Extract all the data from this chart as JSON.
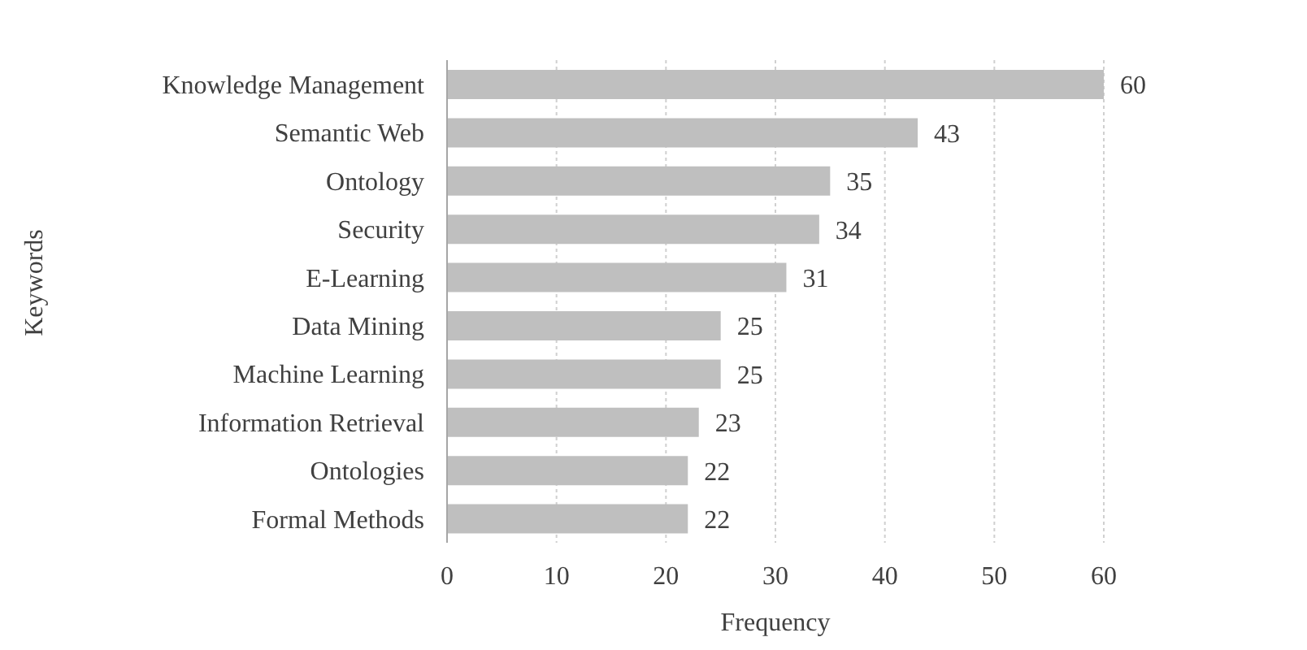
{
  "chart_data": {
    "type": "bar",
    "orientation": "horizontal",
    "xlabel": "Frequency",
    "ylabel": "Keywords",
    "categories": [
      "Knowledge Management",
      "Semantic Web",
      "Ontology",
      "Security",
      "E-Learning",
      "Data Mining",
      "Machine Learning",
      "Information Retrieval",
      "Ontologies",
      "Formal Methods"
    ],
    "values": [
      60,
      43,
      35,
      34,
      31,
      25,
      25,
      23,
      22,
      22
    ],
    "color": "#bfbfbf",
    "xlim": [
      0,
      60
    ],
    "xticks": [
      0,
      10,
      20,
      30,
      40,
      50,
      60
    ],
    "grid": "x",
    "data_labels": true,
    "legend": false
  }
}
